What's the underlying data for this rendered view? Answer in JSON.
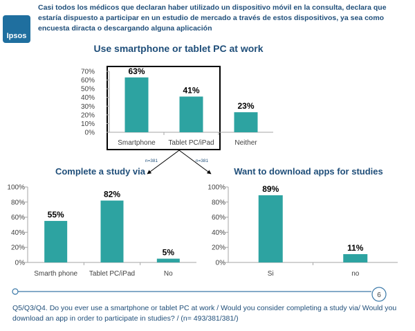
{
  "header": {
    "logo_text": "Ipsos",
    "headline": "Casi todos los médicos que declaran haber utilizado un dispositivo móvil en la consulta, declara que estaría dispuesto a participar en un estudio de mercado a través de estos dispositivos, ya sea como encuesta diracta o descargando alguna aplicación"
  },
  "colors": {
    "bar": "#2da3a1",
    "title": "#1f4e79",
    "axis": "#a6a6a6",
    "frame": "#000000",
    "line": "#3a78a8"
  },
  "annotations": {
    "n_left": "n=381",
    "n_right": "n=381"
  },
  "page_number": "6",
  "footer": "Q5/Q3/Q4. Do you ever use a smartphone or tablet PC at work / Would you consider completing a study via/ Would you download an app in order to participate in studies? / (n= 493/381/381/)",
  "chart_data": [
    {
      "type": "bar",
      "title": "Use smartphone or tablet PC at work",
      "categories": [
        "Smartphone",
        "Tablet PC/iPad",
        "Neither"
      ],
      "values": [
        63,
        41,
        23
      ],
      "data_labels": [
        "63%",
        "41%",
        "23%"
      ],
      "ylim": [
        0,
        70
      ],
      "yticks": [
        "0%",
        "10%",
        "20%",
        "30%",
        "40%",
        "50%",
        "60%",
        "70%"
      ],
      "grid": false
    },
    {
      "type": "bar",
      "title": "Complete a study via",
      "categories": [
        "Smarth phone",
        "Tablet PC/iPad",
        "No"
      ],
      "values": [
        55,
        82,
        5
      ],
      "data_labels": [
        "55%",
        "82%",
        "5%"
      ],
      "ylim": [
        0,
        100
      ],
      "yticks": [
        "0%",
        "20%",
        "40%",
        "60%",
        "80%",
        "100%"
      ],
      "grid": false
    },
    {
      "type": "bar",
      "title": "Want to download apps for studies",
      "categories": [
        "Si",
        "no"
      ],
      "values": [
        89,
        11
      ],
      "data_labels": [
        "89%",
        "11%"
      ],
      "ylim": [
        0,
        100
      ],
      "yticks": [
        "0%",
        "20%",
        "40%",
        "60%",
        "80%",
        "100%"
      ],
      "grid": false
    }
  ]
}
